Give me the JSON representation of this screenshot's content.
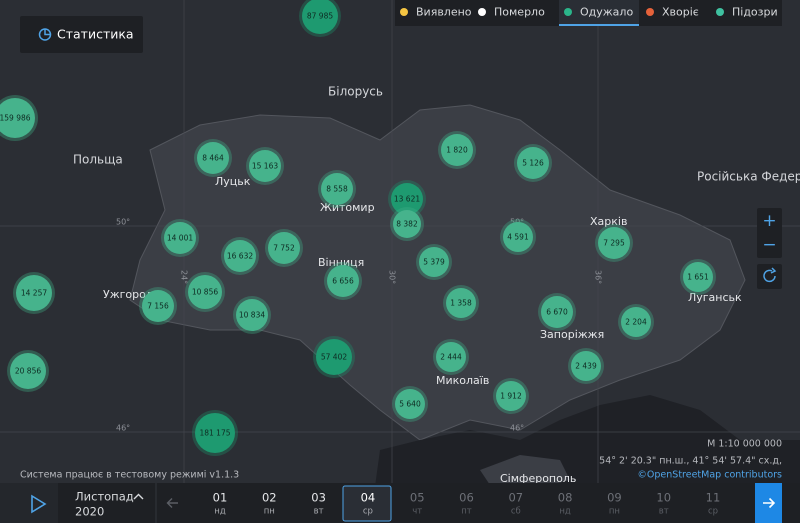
{
  "header": {
    "stats_button": "Статистика"
  },
  "legend": [
    "Виявлено",
    "Померло",
    "Одужало",
    "Хворіє",
    "Підозри"
  ],
  "map_labels": [
    "Білорусь",
    "Польща",
    "Російська Федерац",
    "Луцьк",
    "Житомир",
    "Вінниця",
    "Ужгород",
    "Харків",
    "Луганськ",
    "Запоріжжя",
    "Миколаїв",
    "Сімферополь"
  ],
  "grid_labels": [
    "50°",
    "24°",
    "30°",
    "50°",
    "36°",
    "46°",
    "46°"
  ],
  "clusters": [
    "87 985",
    "159 986",
    "8 464",
    "15 163",
    "8 558",
    "13 621",
    "8 382",
    "1 820",
    "5 126",
    "14 001",
    "16 632",
    "7 752",
    "6 656",
    "5 379",
    "4 591",
    "7 295",
    "1 651",
    "14 257",
    "7 156",
    "10 856",
    "10 834",
    "1 358",
    "6 670",
    "2 204",
    "57 402",
    "2 444",
    "2 439",
    "20 856",
    "5 640",
    "1 912",
    "181 175"
  ],
  "zoom": {
    "in": "+",
    "out": "−"
  },
  "footer": {
    "status": "Система працює в тестовому режимі v1.1.3",
    "scale": "M 1:10 000 000",
    "coords": "54° 2' 20.3\" пн.ш., 41° 54' 57.4\" сх.д,",
    "attribution": "©OpenStreetMap contributors"
  },
  "timeline": {
    "month": "Листопад",
    "year": "2020",
    "days": [
      {
        "day": "01",
        "weekday": "нд"
      },
      {
        "day": "02",
        "weekday": "пн"
      },
      {
        "day": "03",
        "weekday": "вт"
      },
      {
        "day": "04",
        "weekday": "ср"
      },
      {
        "day": "05",
        "weekday": "чт"
      },
      {
        "day": "06",
        "weekday": "пт"
      },
      {
        "day": "07",
        "weekday": "сб"
      },
      {
        "day": "08",
        "weekday": "нд"
      },
      {
        "day": "09",
        "weekday": "пн"
      },
      {
        "day": "10",
        "weekday": "вт"
      },
      {
        "day": "11",
        "weekday": "ср"
      }
    ]
  }
}
